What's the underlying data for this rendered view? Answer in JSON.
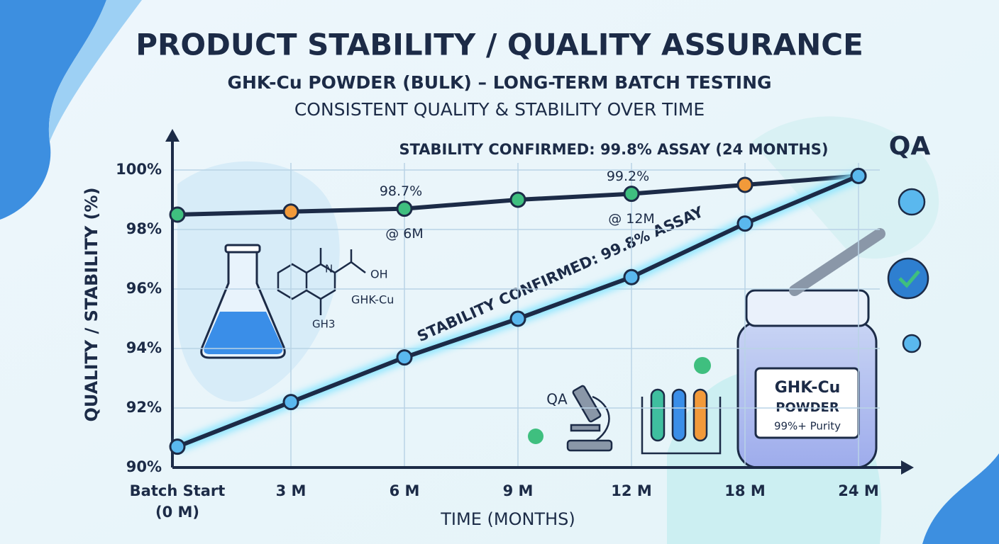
{
  "chart_data": {
    "type": "line",
    "title": "PRODUCT STABILITY / QUALITY ASSURANCE",
    "subtitle": "GHK-Cu POWDER (BULK) – LONG-TERM BATCH TESTING",
    "subtitle2": "CONSISTENT QUALITY & STABILITY OVER TIME",
    "x_label": "TIME (MONTHS)",
    "y_label": "QUALITY / STABILITY (%)",
    "categories": [
      "Batch Start\n(0 M)",
      "3 M",
      "6 M",
      "9 M",
      "12 M",
      "18 M",
      "24 M"
    ],
    "ylim": [
      90,
      100
    ],
    "yticks": [
      {
        "value": 90,
        "label": "90%"
      },
      {
        "value": 92,
        "label": "92%"
      },
      {
        "value": 94,
        "label": "94%"
      },
      {
        "value": 96,
        "label": "96%"
      },
      {
        "value": 98,
        "label": "98%"
      },
      {
        "value": 100,
        "label": "100%"
      }
    ],
    "grid": true,
    "series": [
      {
        "color": "#1c2b47",
        "point_colors": [
          "#3fbf7f",
          "#f29a3a",
          "#3fbf7f",
          "#3fbf7f",
          "#3fbf7f",
          "#f29a3a",
          "#5ab8ee"
        ],
        "values": [
          98.5,
          98.6,
          98.7,
          99.0,
          99.2,
          99.5,
          99.8
        ],
        "value_labels": [
          null,
          null,
          "98.7%",
          null,
          "99.2%",
          null,
          null
        ]
      },
      {
        "color": "#1c2b47",
        "glow": "#8fe6ff",
        "point_colors": [
          "#5ab8ee",
          "#5ab8ee",
          "#5ab8ee",
          "#5ab8ee",
          "#5ab8ee",
          "#5ab8ee",
          "#5ab8ee"
        ],
        "values": [
          90.7,
          92.2,
          93.7,
          95.0,
          96.4,
          98.2,
          99.8
        ]
      }
    ],
    "annotations": [
      "STABILITY CONFIRMED: 99.8% ASSAY (24 MONTHS)",
      "STABILITY CONFIRMED: 99.8% ASSAY",
      "@ 6M",
      "@ 12M"
    ]
  },
  "illustrations": {
    "qa_badge": "QA",
    "molecule_label": "GHK-Cu",
    "molecule_oh": "OH",
    "molecule_ch3": "GH3",
    "microscope_label": "QA",
    "jar_label": [
      "GHK-Cu",
      "POWDER",
      "99%+ Purity"
    ]
  }
}
